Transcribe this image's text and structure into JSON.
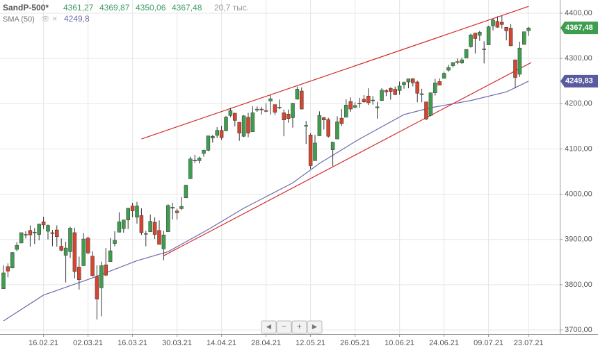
{
  "chart_data": {
    "type": "candlestick",
    "header": {
      "symbol": "SandP-500*",
      "values": [
        "4361,27",
        "4369,87",
        "4350,06",
        "4367,48"
      ],
      "volume": "20,7 тыс.",
      "indicator": "SMA (50)",
      "indicator_value": "4249,8"
    },
    "up_color": "#3f9d4f",
    "down_color": "#d5452f",
    "categories": [
      null,
      null,
      null,
      null,
      null,
      null,
      null,
      null,
      null,
      "16.02.21",
      null,
      null,
      null,
      null,
      null,
      null,
      null,
      null,
      null,
      "02.03.21",
      null,
      null,
      null,
      null,
      null,
      null,
      null,
      null,
      null,
      "16.03.21",
      null,
      null,
      null,
      null,
      null,
      null,
      null,
      null,
      null,
      "30.03.21",
      null,
      null,
      null,
      null,
      null,
      null,
      null,
      null,
      null,
      "14.04.21",
      null,
      null,
      null,
      null,
      null,
      null,
      null,
      null,
      null,
      "28.04.21",
      null,
      null,
      null,
      null,
      null,
      null,
      null,
      null,
      null,
      "12.05.21",
      null,
      null,
      null,
      null,
      null,
      null,
      null,
      null,
      null,
      "26.05.21",
      null,
      null,
      null,
      null,
      null,
      null,
      null,
      null,
      null,
      "10.06.21",
      null,
      null,
      null,
      null,
      null,
      null,
      null,
      null,
      null,
      "24.06.21",
      null,
      null,
      null,
      null,
      null,
      null,
      null,
      null,
      null,
      "09.07.21",
      null,
      null,
      null,
      null,
      null,
      null,
      null,
      null,
      "23.07.21"
    ],
    "ohlc": [
      [
        3791,
        3843,
        3791,
        3826
      ],
      [
        3840,
        3847,
        3816,
        3830
      ],
      [
        3837,
        3872,
        3836,
        3871
      ],
      [
        3878,
        3894,
        3874,
        3887
      ],
      [
        3892,
        3915,
        3892,
        3915
      ],
      [
        3910,
        3918,
        3902,
        3911
      ],
      [
        3920,
        3931,
        3884,
        3910
      ],
      [
        3916,
        3925,
        3890,
        3916
      ],
      [
        3911,
        3935,
        3898,
        3934
      ],
      [
        3939,
        3950,
        3923,
        3932
      ],
      [
        3918,
        3933,
        3900,
        3931
      ],
      [
        3915,
        3921,
        3885,
        3913
      ],
      [
        3921,
        3931,
        3884,
        3906
      ],
      [
        3885,
        3902,
        3874,
        3876
      ],
      [
        3865,
        3895,
        3805,
        3881
      ],
      [
        3873,
        3928,
        3859,
        3925
      ],
      [
        3915,
        3926,
        3814,
        3829
      ],
      [
        3839,
        3862,
        3789,
        3811
      ],
      [
        3842,
        3914,
        3842,
        3901
      ],
      [
        3903,
        3906,
        3868,
        3870
      ],
      [
        3863,
        3874,
        3818,
        3820
      ],
      [
        3818,
        3843,
        3723,
        3768
      ],
      [
        3793,
        3851,
        3730,
        3842
      ],
      [
        3844,
        3881,
        3819,
        3821
      ],
      [
        3851,
        3903,
        3851,
        3875
      ],
      [
        3891,
        3918,
        3885,
        3898
      ],
      [
        3916,
        3960,
        3916,
        3939
      ],
      [
        3924,
        3944,
        3915,
        3943
      ],
      [
        3943,
        3970,
        3923,
        3969
      ],
      [
        3974,
        3981,
        3949,
        3963
      ],
      [
        3949,
        3983,
        3935,
        3974
      ],
      [
        3953,
        3969,
        3910,
        3915
      ],
      [
        3913,
        3919,
        3885,
        3913
      ],
      [
        3917,
        3955,
        3917,
        3940
      ],
      [
        3938,
        3949,
        3901,
        3911
      ],
      [
        3920,
        3942,
        3889,
        3889
      ],
      [
        3879,
        3919,
        3854,
        3910
      ],
      [
        3917,
        3978,
        3917,
        3975
      ],
      [
        3969,
        3981,
        3944,
        3971
      ],
      [
        3963,
        3968,
        3944,
        3959
      ],
      [
        3968,
        3994,
        3965,
        3973
      ],
      [
        3992,
        4021,
        3992,
        4020
      ],
      [
        4034,
        4083,
        4034,
        4078
      ],
      [
        4075,
        4087,
        4069,
        4074
      ],
      [
        4074,
        4083,
        4068,
        4080
      ],
      [
        4090,
        4098,
        4083,
        4097
      ],
      [
        4097,
        4129,
        4095,
        4129
      ],
      [
        4124,
        4131,
        4114,
        4128
      ],
      [
        4130,
        4148,
        4124,
        4141
      ],
      [
        4141,
        4151,
        4120,
        4125
      ],
      [
        4140,
        4173,
        4139,
        4170
      ],
      [
        4174,
        4191,
        4170,
        4185
      ],
      [
        4179,
        4180,
        4150,
        4163
      ],
      [
        4159,
        4159,
        4118,
        4135
      ],
      [
        4128,
        4175,
        4126,
        4173
      ],
      [
        4170,
        4180,
        4126,
        4135
      ],
      [
        4138,
        4194,
        4138,
        4180
      ],
      [
        4186,
        4194,
        4182,
        4188
      ],
      [
        4188,
        4193,
        4176,
        4187
      ],
      [
        4185,
        4201,
        4181,
        4183
      ],
      [
        4206,
        4219,
        4176,
        4211
      ],
      [
        4198,
        4198,
        4175,
        4181
      ],
      [
        4191,
        4209,
        4188,
        4192
      ],
      [
        4180,
        4187,
        4128,
        4164
      ],
      [
        4177,
        4187,
        4158,
        4167
      ],
      [
        4169,
        4202,
        4147,
        4201
      ],
      [
        4210,
        4238,
        4209,
        4232
      ],
      [
        4228,
        4236,
        4188,
        4188
      ],
      [
        4150,
        4162,
        4111,
        4152
      ],
      [
        4131,
        4135,
        4056,
        4063
      ],
      [
        4074,
        4131,
        4074,
        4113
      ],
      [
        4129,
        4183,
        4129,
        4174
      ],
      [
        4169,
        4171,
        4143,
        4164
      ],
      [
        4165,
        4169,
        4125,
        4128
      ],
      [
        4098,
        4116,
        4062,
        4115
      ],
      [
        4122,
        4172,
        4122,
        4160
      ],
      [
        4168,
        4188,
        4151,
        4156
      ],
      [
        4170,
        4210,
        4170,
        4197
      ],
      [
        4205,
        4214,
        4182,
        4188
      ],
      [
        4192,
        4203,
        4190,
        4196
      ],
      [
        4201,
        4213,
        4191,
        4200
      ],
      [
        4210,
        4219,
        4202,
        4204
      ],
      [
        4217,
        4234,
        4197,
        4202
      ],
      [
        4207,
        4217,
        4198,
        4208
      ],
      [
        4191,
        4204,
        4167,
        4193
      ],
      [
        4207,
        4234,
        4206,
        4230
      ],
      [
        4229,
        4232,
        4217,
        4226
      ],
      [
        4234,
        4236,
        4209,
        4227
      ],
      [
        4232,
        4238,
        4219,
        4220
      ],
      [
        4229,
        4249,
        4220,
        4239
      ],
      [
        4242,
        4249,
        4233,
        4247
      ],
      [
        4248,
        4255,
        4234,
        4255
      ],
      [
        4255,
        4257,
        4238,
        4246
      ],
      [
        4248,
        4251,
        4203,
        4223
      ],
      [
        4220,
        4233,
        4203,
        4222
      ],
      [
        4204,
        4204,
        4164,
        4166
      ],
      [
        4174,
        4225,
        4172,
        4224
      ],
      [
        4224,
        4255,
        4218,
        4246
      ],
      [
        4249,
        4256,
        4241,
        4241
      ],
      [
        4256,
        4271,
        4256,
        4267
      ],
      [
        4274,
        4286,
        4271,
        4280
      ],
      [
        4284,
        4292,
        4280,
        4291
      ],
      [
        4293,
        4300,
        4287,
        4291
      ],
      [
        4290,
        4302,
        4288,
        4297
      ],
      [
        4301,
        4320,
        4301,
        4320
      ],
      [
        4326,
        4355,
        4324,
        4352
      ],
      [
        4356,
        4357,
        4311,
        4344
      ],
      [
        4351,
        4361,
        4339,
        4358
      ],
      [
        4321,
        4338,
        4289,
        4320
      ],
      [
        4330,
        4372,
        4330,
        4370
      ],
      [
        4372,
        4387,
        4362,
        4385
      ],
      [
        4382,
        4393,
        4368,
        4369
      ],
      [
        4380,
        4394,
        4366,
        4375
      ],
      [
        4369,
        4369,
        4340,
        4361
      ],
      [
        4367,
        4376,
        4327,
        4328
      ],
      [
        4297,
        4297,
        4234,
        4258
      ],
      [
        4265,
        4337,
        4259,
        4323
      ],
      [
        4331,
        4359,
        4330,
        4359
      ],
      [
        4361.27,
        4369.87,
        4350.06,
        4367.48
      ]
    ],
    "sma": {
      "name": "SMA (50)",
      "color": "#6a6aae",
      "x": [
        0,
        9,
        20,
        30,
        37,
        46,
        54,
        65,
        71,
        80,
        90,
        96,
        105,
        113,
        118
      ],
      "values": [
        3720,
        3777,
        3815,
        3853,
        3873,
        3922,
        3969,
        4025,
        4068,
        4122,
        4176,
        4191,
        4207,
        4226,
        4249.8
      ]
    },
    "trendlines": {
      "color": "#d42a2a",
      "lines": [
        [
          31,
          4122,
          118,
          4415
        ],
        [
          36,
          3864,
          118.6,
          4291
        ]
      ]
    },
    "price_tags": [
      {
        "value": 4367.48,
        "label": "4367,48",
        "color": "#3f9d4f"
      },
      {
        "value": 4249.83,
        "label": "4249,83",
        "color": "#5a5aa0"
      }
    ],
    "ylim": [
      3700,
      4400
    ],
    "yticks": [
      {
        "value": 3700,
        "label": "3700,00"
      },
      {
        "value": 3800,
        "label": "3800,00"
      },
      {
        "value": 3900,
        "label": "3900,00"
      },
      {
        "value": 4000,
        "label": "4000,00"
      },
      {
        "value": 4100,
        "label": "4100,00"
      },
      {
        "value": 4200,
        "label": "4200,00"
      },
      {
        "value": 4300,
        "label": "4300,00"
      },
      {
        "value": 4400,
        "label": "4400,00"
      }
    ],
    "grid": true
  }
}
